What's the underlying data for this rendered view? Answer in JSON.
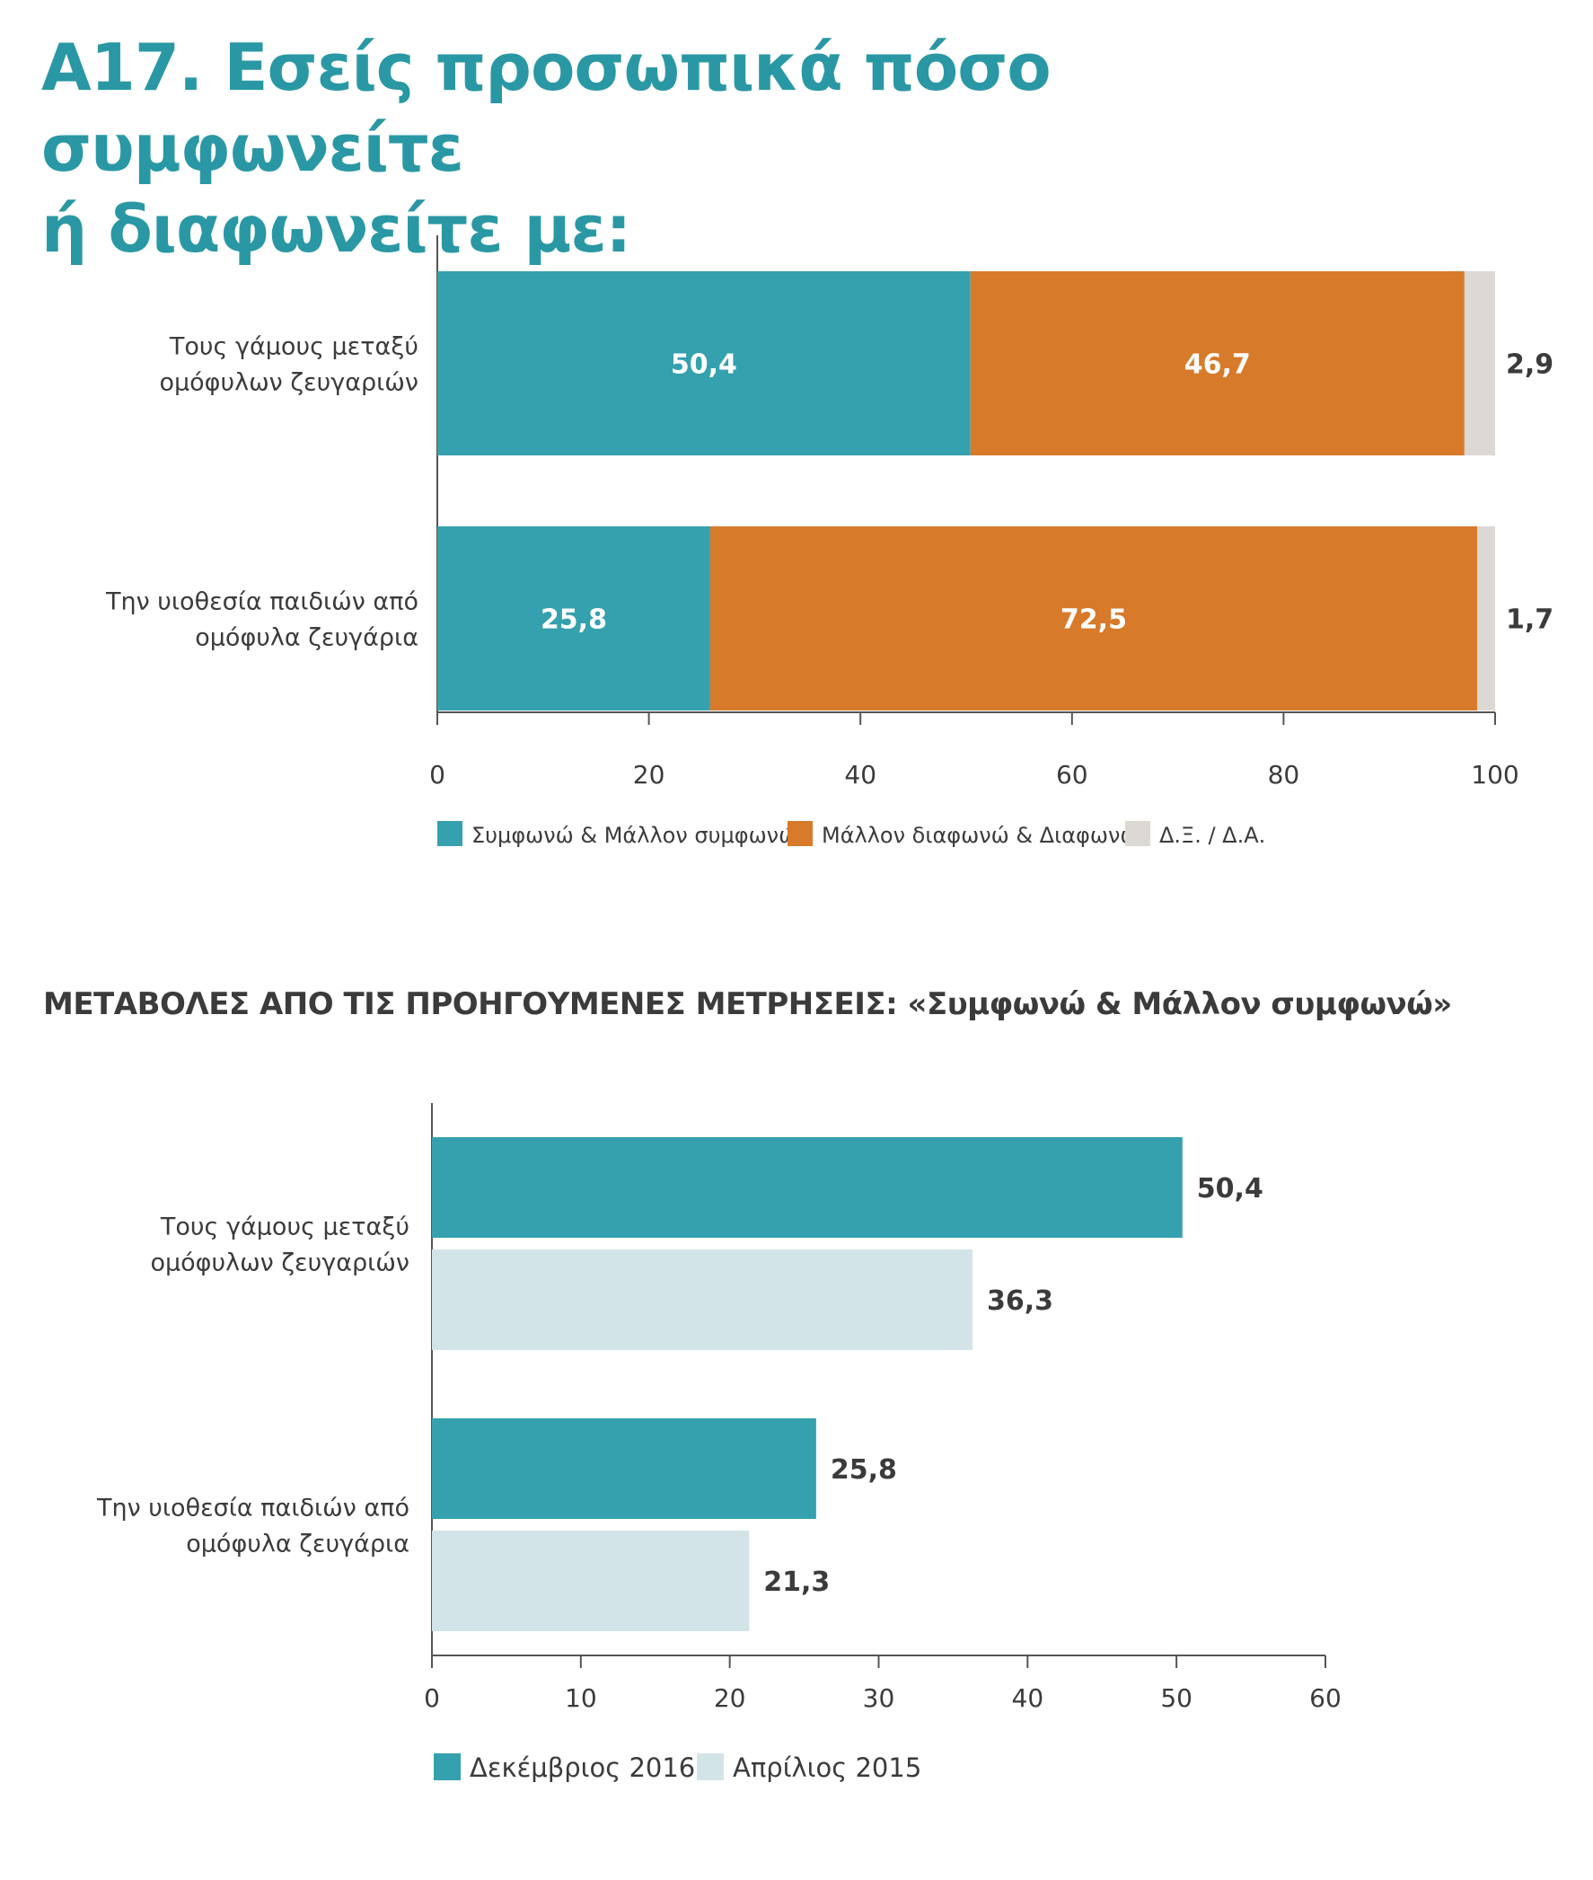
{
  "title": {
    "line1": "Α17. Εσείς προσωπικά πόσο συμφωνείτε",
    "line2": "ή διαφωνείτε με:"
  },
  "subtitle": "ΜΕΤΑΒΟΛΕΣ ΑΠΟ ΤΙΣ ΠΡΟΗΓΟΥΜΕΝΕΣ ΜΕΤΡΗΣΕΙΣ: «Συμφωνώ & Μάλλον συμφωνώ»",
  "chart_data": [
    {
      "type": "bar",
      "orientation": "horizontal",
      "stacked": true,
      "categories": [
        [
          "Τους γάμους μεταξύ",
          "ομόφυλων ζευγαριών"
        ],
        [
          "Την υιοθεσία παιδιών από",
          "ομόφυλα ζευγάρια"
        ]
      ],
      "series": [
        {
          "name": "Συμφωνώ & Μάλλον συμφωνώ",
          "values": [
            50.4,
            25.8
          ],
          "labels": [
            "50,4",
            "25,8"
          ],
          "color": "#35a1ae"
        },
        {
          "name": "Μάλλον διαφωνώ & Διαφωνώ",
          "values": [
            46.7,
            72.5
          ],
          "labels": [
            "46,7",
            "72,5"
          ],
          "color": "#d77a2a"
        },
        {
          "name": "Δ.Ξ. / Δ.Α.",
          "values": [
            2.9,
            1.7
          ],
          "labels": [
            "2,9",
            "1,7"
          ],
          "color": "#dcd8d4"
        }
      ],
      "xlim": [
        0,
        100
      ],
      "xticks": [
        "0",
        "20",
        "40",
        "60",
        "80",
        "100"
      ],
      "legend": "bottom"
    },
    {
      "type": "bar",
      "orientation": "horizontal",
      "stacked": false,
      "categories": [
        [
          "Τους γάμους μεταξύ",
          "ομόφυλων ζευγαριών"
        ],
        [
          "Την υιοθεσία παιδιών από",
          "ομόφυλα ζευγάρια"
        ]
      ],
      "series": [
        {
          "name": "Δεκέμβριος 2016",
          "values": [
            50.4,
            25.8
          ],
          "labels": [
            "50,4",
            "25,8"
          ],
          "color": "#35a1ae"
        },
        {
          "name": "Απρίλιος 2015",
          "values": [
            36.3,
            21.3
          ],
          "labels": [
            "36,3",
            "21,3"
          ],
          "color": "#d2e4e8"
        }
      ],
      "xlim": [
        0,
        60
      ],
      "xticks": [
        "0",
        "10",
        "20",
        "30",
        "40",
        "50",
        "60"
      ],
      "legend": "bottom"
    }
  ]
}
